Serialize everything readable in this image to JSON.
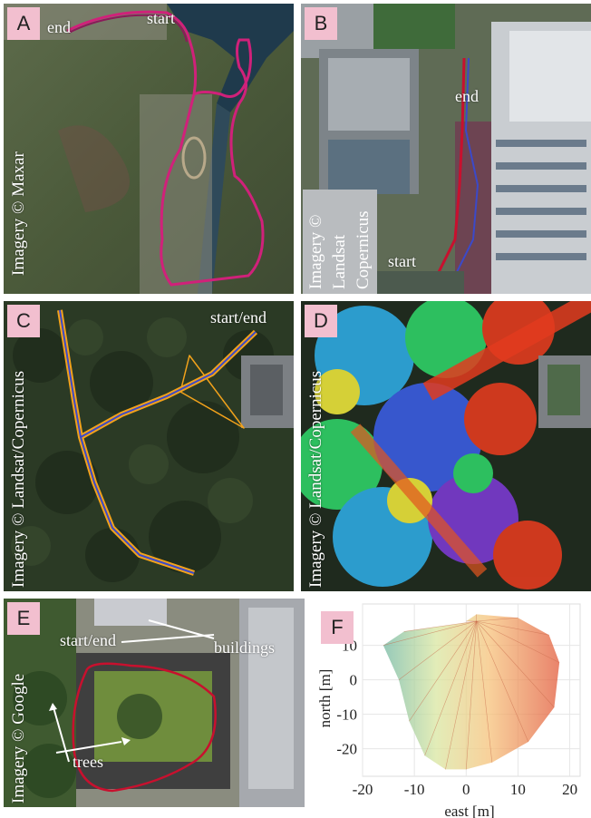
{
  "panels": {
    "A": {
      "badge": "A",
      "start": "start",
      "end": "end",
      "credit": "Imagery © Maxar"
    },
    "B": {
      "badge": "B",
      "start": "start",
      "end": "end",
      "credit_line1": "Imagery ©",
      "credit_line2": "Landsat",
      "credit_line3": "Copernicus"
    },
    "C": {
      "badge": "C",
      "start_end": "start/end",
      "credit": "Imagery © Landsat/Copernicus"
    },
    "D": {
      "badge": "D",
      "credit": "Imagery © Landsat/Copernicus"
    },
    "E": {
      "badge": "E",
      "start_end": "start/end",
      "buildings": "buildings",
      "trees": "trees",
      "credit": "Imagery © Google"
    },
    "F": {
      "badge": "F",
      "xlabel": "east [m]",
      "ylabel": "north [m]",
      "xticks": [
        "-20",
        "-10",
        "0",
        "10",
        "20"
      ],
      "yticks": [
        "10",
        "0",
        "-10",
        "-20"
      ]
    }
  },
  "colors": {
    "trajectory_red": "#c8102e",
    "trajectory_magenta": "#d0217a",
    "trajectory_blue": "#3b49c9",
    "trajectory_orange": "#f2a21b",
    "badge_bg": "#f2bfcf"
  },
  "chart_data": {
    "type": "scatter",
    "xlabel": "east [m]",
    "ylabel": "north [m]",
    "xlim": [
      -20,
      22
    ],
    "ylim": [
      -28,
      22
    ],
    "grid": true,
    "x": [
      2,
      -12,
      -16,
      -13,
      -11,
      -8,
      -4,
      0,
      5,
      12,
      17,
      18,
      16,
      10,
      2,
      0
    ],
    "y": [
      17,
      14,
      10,
      0,
      -12,
      -22,
      -26,
      -26,
      -24,
      -18,
      -8,
      5,
      13,
      18,
      19,
      17
    ]
  }
}
